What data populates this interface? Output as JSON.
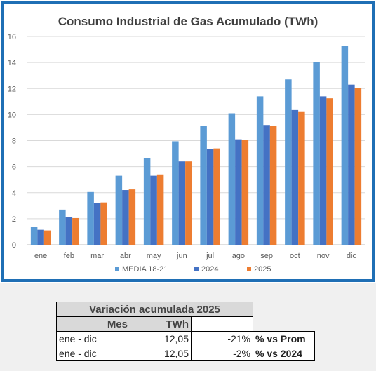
{
  "chart_data": {
    "type": "bar",
    "title": "Consumo Industrial de Gas Acumulado (TWh)",
    "categories": [
      "ene",
      "feb",
      "mar",
      "abr",
      "may",
      "jun",
      "jul",
      "ago",
      "sep",
      "oct",
      "nov",
      "dic"
    ],
    "series": [
      {
        "name": "MEDIA 18-21",
        "color": "#5b9bd5",
        "values": [
          1.35,
          2.7,
          4.05,
          5.3,
          6.65,
          7.95,
          9.15,
          10.1,
          11.4,
          12.7,
          14.05,
          15.25
        ]
      },
      {
        "name": "2024",
        "color": "#4472c4",
        "values": [
          1.15,
          2.15,
          3.2,
          4.2,
          5.3,
          6.4,
          7.35,
          8.1,
          9.2,
          10.35,
          11.4,
          12.3
        ]
      },
      {
        "name": "2025",
        "color": "#ed7d31",
        "values": [
          1.1,
          2.05,
          3.25,
          4.25,
          5.4,
          6.4,
          7.4,
          8.05,
          9.15,
          10.25,
          11.25,
          12.05
        ]
      }
    ],
    "ylim": [
      0,
      16
    ],
    "yticks": [
      0,
      2,
      4,
      6,
      8,
      10,
      12,
      14,
      16
    ],
    "grid": true,
    "legend": "bottom"
  },
  "table": {
    "title": "Variación acumulada 2025",
    "headers": {
      "mes": "Mes",
      "twh": "TWh"
    },
    "rows": [
      {
        "mes": "ene - dic",
        "twh": "12,05",
        "pct": "-21%",
        "label": "% vs Prom"
      },
      {
        "mes": "ene - dic",
        "twh": "12,05",
        "pct": "-2%",
        "label": "% vs 2024"
      }
    ]
  }
}
